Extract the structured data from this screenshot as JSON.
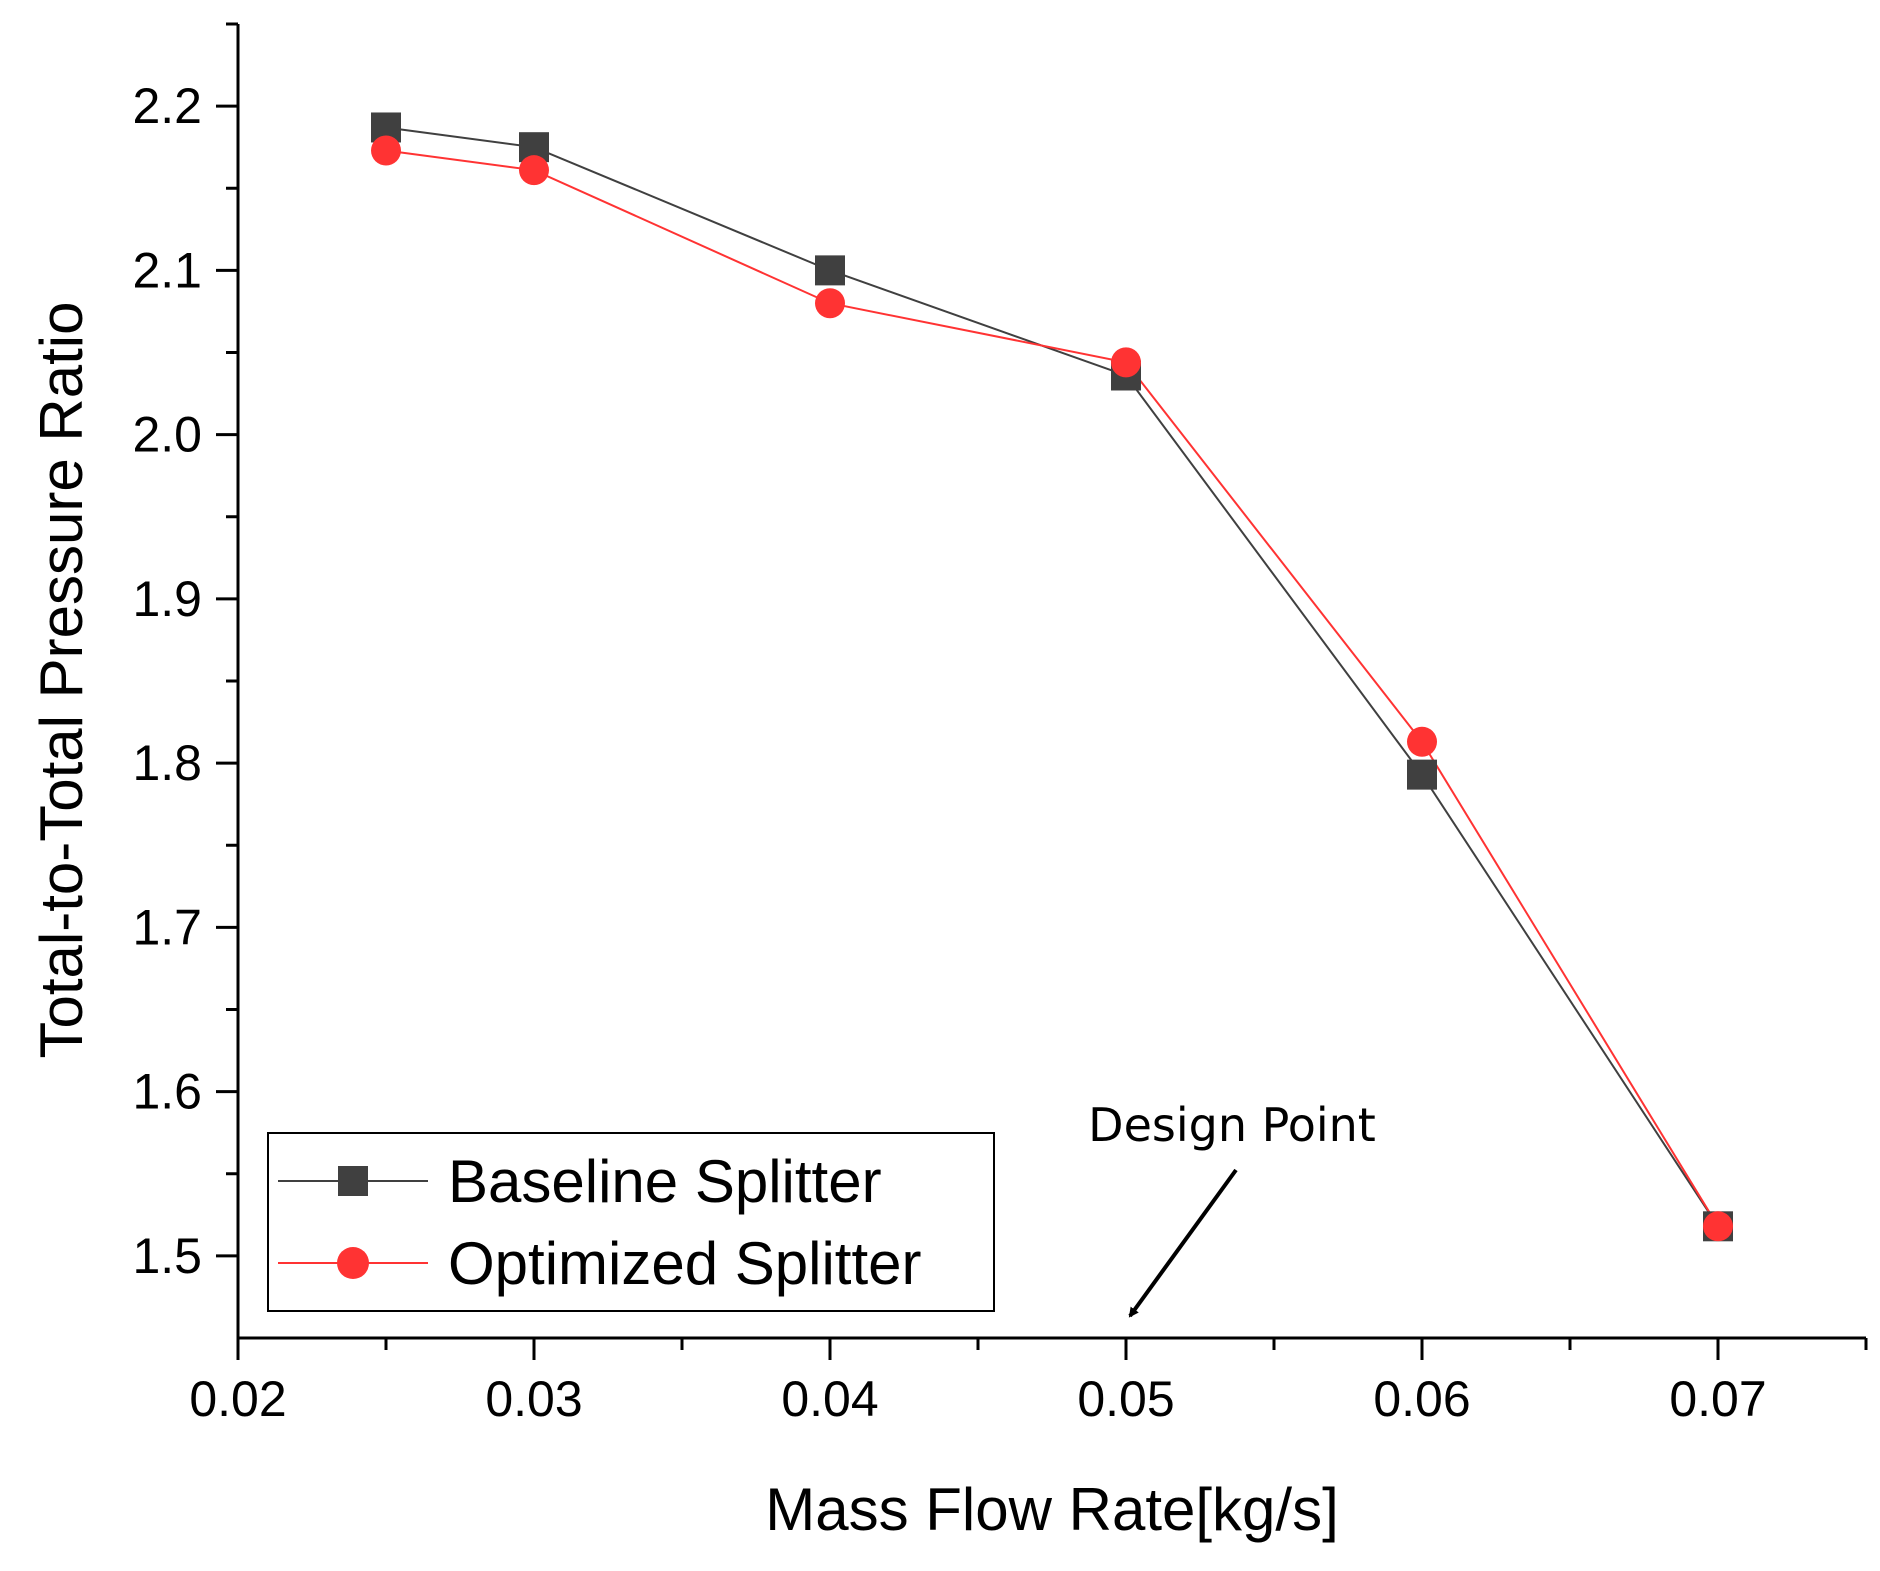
{
  "chart_data": {
    "type": "line",
    "title": "",
    "xlabel": "Mass Flow Rate[kg/s]",
    "ylabel": "Total-to-Total Pressure Ratio",
    "xlim": [
      0.02,
      0.075
    ],
    "ylim": [
      1.45,
      2.25
    ],
    "xticks": [
      {
        "value": 0.02,
        "label": "0.02"
      },
      {
        "value": 0.03,
        "label": "0.03"
      },
      {
        "value": 0.04,
        "label": "0.04"
      },
      {
        "value": 0.05,
        "label": "0.05"
      },
      {
        "value": 0.06,
        "label": "0.06"
      },
      {
        "value": 0.07,
        "label": "0.07"
      }
    ],
    "xminor": [
      0.025,
      0.035,
      0.045,
      0.055,
      0.065,
      0.075
    ],
    "yticks": [
      {
        "value": 1.5,
        "label": "1.5"
      },
      {
        "value": 1.6,
        "label": "1.6"
      },
      {
        "value": 1.7,
        "label": "1.7"
      },
      {
        "value": 1.8,
        "label": "1.8"
      },
      {
        "value": 1.9,
        "label": "1.9"
      },
      {
        "value": 2.0,
        "label": "2.0"
      },
      {
        "value": 2.1,
        "label": "2.1"
      },
      {
        "value": 2.2,
        "label": "2.2"
      }
    ],
    "yminor": [
      1.55,
      1.65,
      1.75,
      1.85,
      1.95,
      2.05,
      2.15,
      2.25
    ],
    "grid": false,
    "legend_position": "bottom-left",
    "series": [
      {
        "name": "Baseline Splitter",
        "color": "#404040",
        "marker": "square",
        "x": [
          0.025,
          0.03,
          0.04,
          0.05,
          0.06,
          0.07
        ],
        "y": [
          2.187,
          2.175,
          2.1,
          2.036,
          1.793,
          1.518
        ]
      },
      {
        "name": "Optimized Splitter",
        "color": "#ff3333",
        "marker": "circle",
        "x": [
          0.025,
          0.03,
          0.04,
          0.05,
          0.06,
          0.07
        ],
        "y": [
          2.173,
          2.161,
          2.08,
          2.044,
          1.813,
          1.518
        ]
      }
    ],
    "annotations": [
      {
        "text": "Design Point",
        "points_to": {
          "x": 0.05,
          "y": 1.455
        }
      }
    ]
  }
}
